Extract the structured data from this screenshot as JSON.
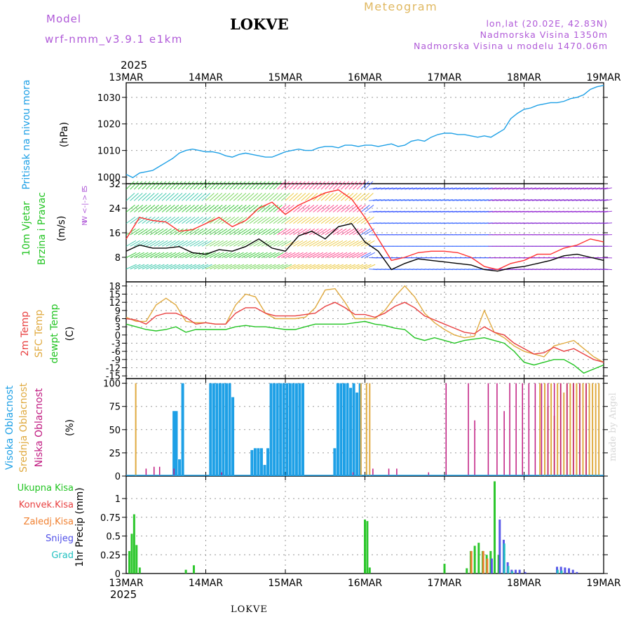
{
  "header": {
    "model_label": "Model",
    "model": "wrf-nmm_v3.9.1  e1km",
    "site": "LOKVE",
    "title": "Meteogram",
    "info_lonlat": "lon,lat (20.02E, 42.83N)",
    "info_alt": "Nadmorska Visina 1350m",
    "info_model_alt": "Nadmorska Visina u modelu 1470.06m",
    "year": "2025"
  },
  "footer": {
    "site": "LOKVE",
    "credit": "made by Angel"
  },
  "colors": {
    "pressure": "#1ea0e6",
    "wind_speed": "#000000",
    "wind_gust": "#ff3030",
    "t2m": "#e84040",
    "tsfc": "#e0aa40",
    "dewpt": "#22c422",
    "high_cloud": "#1ea0e6",
    "mid_cloud": "#e0aa40",
    "low_cloud": "#c01a80",
    "total_precip": "#22c422",
    "conv_precip": "#e84040",
    "frozen_precip": "#f08030",
    "snow": "#5050e8",
    "graupel": "#20c0c0",
    "purple_label": "#b05ad8"
  },
  "chart_data": [
    {
      "type": "line",
      "panel": "pressure",
      "ylabel_a": "Pritisak na nivou mora",
      "ylabel_b": "(hPa)",
      "x_ticks": [
        "13MAR",
        "14MAR",
        "15MAR",
        "16MAR",
        "17MAR",
        "18MAR",
        "19MAR"
      ],
      "ylim": [
        997.5,
        1035.5
      ],
      "yticks": [
        "1000",
        "1010",
        "1020",
        "1030"
      ],
      "ytick_values": [
        1000,
        1010,
        1020,
        1030
      ],
      "x_days": [
        0,
        0.083,
        0.167,
        0.25,
        0.333,
        0.417,
        0.5,
        0.583,
        0.667,
        0.75,
        0.833,
        0.917,
        1,
        1.083,
        1.167,
        1.25,
        1.333,
        1.417,
        1.5,
        1.583,
        1.667,
        1.75,
        1.833,
        1.917,
        2,
        2.083,
        2.167,
        2.25,
        2.333,
        2.417,
        2.5,
        2.583,
        2.667,
        2.75,
        2.833,
        2.917,
        3,
        3.083,
        3.167,
        3.25,
        3.333,
        3.417,
        3.5,
        3.583,
        3.667,
        3.75,
        3.833,
        3.917,
        4,
        4.083,
        4.167,
        4.25,
        4.333,
        4.417,
        4.5,
        4.583,
        4.667,
        4.75,
        4.833,
        4.917,
        5,
        5.083,
        5.167,
        5.25,
        5.333,
        5.417,
        5.5,
        5.583,
        5.667,
        5.75,
        5.833,
        5.917,
        6
      ],
      "values": [
        1001,
        999.8,
        1001.5,
        1002,
        1002.5,
        1004,
        1005.5,
        1007,
        1009,
        1010,
        1010.5,
        1010,
        1009.5,
        1009.5,
        1009,
        1008,
        1007.5,
        1008.5,
        1009,
        1008.5,
        1008,
        1007.5,
        1007.5,
        1008.5,
        1009.5,
        1010,
        1010.5,
        1010,
        1010,
        1011,
        1011.5,
        1011.5,
        1011,
        1012,
        1012,
        1011.5,
        1012,
        1012,
        1011.5,
        1012,
        1012.5,
        1011.5,
        1012,
        1013.5,
        1014,
        1013.5,
        1015,
        1016,
        1016.5,
        1016.5,
        1016,
        1016,
        1015.5,
        1015,
        1015.5,
        1015,
        1016.5,
        1018,
        1022,
        1024,
        1025.5,
        1026,
        1027,
        1027.5,
        1028,
        1028,
        1028.5,
        1029.5,
        1030,
        1031,
        1033,
        1034,
        1034.5
      ],
      "series": [
        {
          "name": ""
        }
      ]
    },
    {
      "type": "line",
      "panel": "wind",
      "ylabel_a": "10m Vjetar",
      "ylabel_b": "Brzina i Pravac",
      "ylabel_c": "(m/s)",
      "compass": [
        "S",
        "W <-|-> E",
        "N"
      ],
      "ylim": [
        0,
        32
      ],
      "yticks": [
        "8",
        "16",
        "24",
        "32"
      ],
      "ytick_values": [
        8,
        16,
        24,
        32
      ],
      "x_days": [
        0,
        0.167,
        0.333,
        0.5,
        0.667,
        0.833,
        1,
        1.167,
        1.333,
        1.5,
        1.667,
        1.833,
        2,
        2.167,
        2.333,
        2.5,
        2.667,
        2.833,
        3,
        3.167,
        3.333,
        3.5,
        3.667,
        3.833,
        4,
        4.167,
        4.333,
        4.5,
        4.667,
        4.833,
        5,
        5.167,
        5.333,
        5.5,
        5.667,
        5.833,
        6
      ],
      "series": [
        {
          "name": "",
          "values": [
            10,
            12,
            11,
            11,
            11.5,
            9.5,
            9,
            10.5,
            10,
            11.5,
            14,
            11,
            10,
            15,
            16.5,
            14,
            18,
            19,
            13,
            10,
            4,
            6,
            7.5,
            7,
            6.5,
            6,
            5.5,
            4,
            3.5,
            4.5,
            5,
            6,
            7,
            8.5,
            9,
            8,
            7
          ]
        },
        {
          "name": "",
          "values": [
            14,
            21,
            20,
            19.5,
            16.5,
            17,
            19,
            21,
            18,
            20,
            24,
            26,
            22,
            25,
            27,
            29,
            30,
            27,
            21,
            14,
            7,
            8,
            9.5,
            10,
            10,
            9.5,
            8,
            5,
            4,
            6,
            7,
            9,
            9,
            11,
            12,
            14,
            13
          ]
        }
      ],
      "barb_colors_by_day": [
        "#2ed070",
        "#2ed070",
        "#2ed070",
        "#ff3080",
        "#3050ff",
        "#3050ff",
        "#9020d0"
      ]
    },
    {
      "type": "line",
      "panel": "temperature",
      "ylabel_a": "2m Temp",
      "ylabel_b": "SFC Temp",
      "ylabel_c": "dewpt Temp",
      "ylabel_d": "(C)",
      "ylim": [
        -16,
        19.5
      ],
      "yticks": [
        "-15",
        "-12",
        "-9",
        "-6",
        "-3",
        "0",
        "3",
        "6",
        "9",
        "12",
        "15",
        "18"
      ],
      "ytick_values": [
        -15,
        -12,
        -9,
        -6,
        -3,
        0,
        3,
        6,
        9,
        12,
        15,
        18
      ],
      "x_days": [
        0,
        0.125,
        0.25,
        0.375,
        0.5,
        0.625,
        0.75,
        0.875,
        1,
        1.125,
        1.25,
        1.375,
        1.5,
        1.625,
        1.75,
        1.875,
        2,
        2.125,
        2.25,
        2.375,
        2.5,
        2.625,
        2.75,
        2.875,
        3,
        3.125,
        3.25,
        3.375,
        3.5,
        3.625,
        3.75,
        3.875,
        4,
        4.125,
        4.25,
        4.375,
        4.5,
        4.625,
        4.75,
        4.875,
        5,
        5.125,
        5.25,
        5.375,
        5.5,
        5.625,
        5.75,
        5.875,
        6
      ],
      "series": [
        {
          "name": "",
          "values": [
            6,
            5.5,
            4,
            7,
            8,
            8,
            6.5,
            4,
            4.5,
            4,
            4,
            8,
            10,
            10,
            8,
            7,
            7,
            7,
            7.5,
            8,
            10.5,
            12,
            10,
            7.5,
            7.5,
            6.5,
            8,
            10.5,
            12,
            10,
            7,
            5.5,
            4,
            2.5,
            1,
            0.5,
            3,
            1,
            0,
            -3,
            -5,
            -7,
            -6.5,
            -4.5,
            -6,
            -5,
            -7,
            -9,
            -10
          ]
        },
        {
          "name": "",
          "values": [
            6.5,
            5,
            5,
            11,
            13.5,
            11,
            5,
            4.5,
            4.5,
            4,
            4,
            11,
            15,
            14,
            8,
            6,
            6,
            6,
            6.5,
            10,
            16.5,
            17,
            12,
            6,
            6,
            6,
            9,
            14,
            18,
            14,
            8,
            4.5,
            2,
            0,
            -1,
            -0.5,
            9,
            1,
            -1,
            -4,
            -6,
            -7,
            -8,
            -4,
            -3,
            -2,
            -5,
            -8,
            -10
          ]
        },
        {
          "name": "",
          "values": [
            4,
            3,
            2,
            1.5,
            2,
            3,
            1,
            2,
            2,
            2,
            2,
            3,
            3.5,
            3,
            3,
            2.5,
            2,
            2,
            3,
            4,
            4,
            4,
            4,
            4.5,
            5,
            4,
            3.5,
            2.5,
            2,
            -1,
            -2,
            -1,
            -2,
            -3,
            -2,
            -1.5,
            -1,
            -2,
            -3,
            -6,
            -10,
            -11,
            -10,
            -9,
            -9,
            -11,
            -14,
            -12.5,
            -11
          ]
        }
      ]
    },
    {
      "type": "bar",
      "panel": "clouds",
      "ylabel_a": "Visoka Oblacnost",
      "ylabel_b": "Srednja Oblacnost",
      "ylabel_c": "Niska Oblacnost",
      "ylabel_d": "(%)",
      "ylim": [
        0,
        105
      ],
      "yticks": [
        "0",
        "25",
        "50",
        "75",
        "100"
      ],
      "ytick_values": [
        0,
        25,
        50,
        75,
        100
      ],
      "series": [
        {
          "name": "",
          "x_days": [
            0.6,
            0.63,
            0.67,
            0.71,
            0.75,
            1.06,
            1.1,
            1.14,
            1.18,
            1.22,
            1.26,
            1.3,
            1.34,
            1.38,
            1.42,
            1.46,
            1.5,
            1.54,
            1.58,
            1.62,
            1.66,
            1.7,
            1.74,
            1.78,
            1.82,
            1.86,
            1.9,
            1.94,
            1.98,
            2.02,
            2.06,
            2.1,
            2.14,
            2.18,
            2.22,
            2.26,
            2.3,
            2.34,
            2.38,
            2.42,
            2.46,
            2.5,
            2.54,
            2.58,
            2.62,
            2.66,
            2.7,
            2.74,
            2.78,
            2.82,
            2.86,
            2.9,
            2.94,
            2.98
          ],
          "values": [
            70,
            70,
            18,
            100,
            0,
            100,
            100,
            100,
            100,
            100,
            100,
            100,
            85,
            0,
            0,
            0,
            0,
            0,
            28,
            30,
            30,
            30,
            12,
            30,
            100,
            100,
            100,
            100,
            100,
            100,
            100,
            100,
            100,
            100,
            100,
            0,
            0,
            0,
            0,
            0,
            0,
            0,
            0,
            0,
            30,
            100,
            100,
            100,
            100,
            95,
            100,
            90,
            100,
            0
          ]
        },
        {
          "name": "",
          "x_days": [
            0.12,
            2.95,
            3.02,
            3.06,
            5.2,
            5.26,
            5.3,
            5.34,
            5.38,
            5.42,
            5.46,
            5.5,
            5.54,
            5.58,
            5.62,
            5.66,
            5.7,
            5.74,
            5.78,
            5.82,
            5.86,
            5.9,
            5.94
          ],
          "values": [
            100,
            100,
            100,
            100,
            100,
            100,
            75,
            100,
            65,
            100,
            100,
            90,
            100,
            100,
            100,
            100,
            100,
            100,
            100,
            100,
            100,
            100,
            100
          ]
        },
        {
          "name": "",
          "x_days": [
            0.25,
            0.35,
            0.42,
            0.6,
            1.2,
            2.85,
            3.1,
            3.3,
            3.4,
            3.8,
            4.02,
            4.3,
            4.38,
            4.55,
            4.66,
            4.75,
            4.82,
            4.9,
            4.98,
            5.06,
            5.14,
            5.22,
            5.3,
            5.38,
            5.46,
            5.54,
            5.62,
            5.7,
            5.78
          ],
          "values": [
            8,
            10,
            10,
            8,
            4,
            4,
            8,
            8,
            8,
            4,
            100,
            100,
            60,
            100,
            100,
            70,
            100,
            100,
            100,
            100,
            100,
            100,
            100,
            100,
            100,
            100,
            100,
            100,
            100
          ]
        }
      ]
    },
    {
      "type": "bar",
      "panel": "precip",
      "ylabel_a": "1hr Precip (mm)",
      "legend": [
        "Ukupna Kisa",
        "Konvek.Kisa",
        "Zaledj.Kisa",
        "Snijeg",
        "Grad"
      ],
      "ylim": [
        0,
        1.3
      ],
      "yticks": [
        "0",
        "0.25",
        "0.5",
        "0.75",
        "1"
      ],
      "ytick_values": [
        0,
        0.25,
        0.5,
        0.75,
        1
      ],
      "series": [
        {
          "name": "Ukupna Kisa",
          "x_days": [
            0.04,
            0.07,
            0.1,
            0.13,
            0.17,
            0.75,
            0.85,
            3.0,
            3.03,
            3.06,
            4.0,
            4.28,
            4.33,
            4.38,
            4.43,
            4.48,
            4.53,
            4.58,
            4.63,
            4.68
          ],
          "values": [
            0.3,
            0.53,
            0.79,
            0.38,
            0.08,
            0.05,
            0.11,
            0.72,
            0.7,
            0.08,
            0.13,
            0.07,
            0.3,
            0.37,
            0.41,
            0.3,
            0.25,
            0.3,
            1.23,
            0.25
          ]
        },
        {
          "name": "Zaledj.Kisa",
          "x_days": [
            4.33,
            4.48,
            4.53
          ],
          "values": [
            0.3,
            0.3,
            0.2
          ]
        },
        {
          "name": "Snijeg",
          "x_days": [
            4.58,
            4.68,
            4.73,
            4.78,
            4.83,
            4.88,
            4.93,
            5.0,
            5.4,
            5.45,
            5.5,
            5.55,
            5.6,
            5.65
          ],
          "values": [
            0.2,
            0.72,
            0.45,
            0.15,
            0.05,
            0.05,
            0.05,
            0.02,
            0.09,
            0.09,
            0.08,
            0.07,
            0.05,
            0.02
          ]
        },
        {
          "name": "Grad",
          "x_days": [
            4.73,
            4.78,
            4.83,
            5.4,
            5.45
          ],
          "values": [
            0.4,
            0.1,
            0.03,
            0.05,
            0.04
          ]
        }
      ]
    }
  ]
}
